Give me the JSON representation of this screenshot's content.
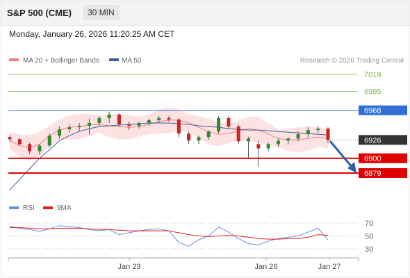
{
  "header": {
    "title": "S&P 500 (CME)",
    "timeframe": "30 MIN"
  },
  "datetime": "Monday, January 26, 2026 11:20:25 AM CET",
  "colors": {
    "resistance": "#7ab648",
    "pivot": "#2f6fd6",
    "support": "#e00000",
    "current_price": "#333333",
    "ma20": "#f08080",
    "bollinger_fill": "#fbd5d5",
    "ma50": "#3a5f9f",
    "candle_up": "#2e8b2e",
    "candle_down": "#cc2222",
    "rsi": "#6a8ee0",
    "rsi_ma": "#e02020",
    "arrow": "#2f5fa8"
  },
  "chart_data": [
    {
      "type": "line",
      "title": "S&P 500 (CME)",
      "timeframe": "30 MIN",
      "legend": [
        {
          "name": "MA 20 + Bollinger Bands",
          "color": "#f08080"
        },
        {
          "name": "MA 50",
          "color": "#3a5f9f"
        }
      ],
      "source": "Research © 2026 Trading Central",
      "y_range": [
        6845,
        7030
      ],
      "x_ticks": [
        "Jan 23",
        "Jan 26",
        "Jan 27"
      ],
      "levels": [
        {
          "label": "7019",
          "value": 7019,
          "kind": "resistance"
        },
        {
          "label": "6995",
          "value": 6995,
          "kind": "resistance"
        },
        {
          "label": "6968",
          "value": 6968,
          "kind": "pivot"
        },
        {
          "label": "6926",
          "value": 6926,
          "kind": "current"
        },
        {
          "label": "6900",
          "value": 6900,
          "kind": "support"
        },
        {
          "label": "6879",
          "value": 6879,
          "kind": "support"
        }
      ],
      "series": [
        {
          "name": "MA 20",
          "values": [
            6925,
            6918,
            6915,
            6920,
            6932,
            6940,
            6944,
            6945,
            6947,
            6948,
            6946,
            6945,
            6944,
            6945,
            6948,
            6952,
            6954,
            6954,
            6950,
            6944,
            6938,
            6934,
            6935,
            6939,
            6942,
            6940,
            6934,
            6928,
            6926,
            6926,
            6928,
            6930,
            6928
          ]
        },
        {
          "name": "MA 50",
          "values": [
            6855,
            6870,
            6885,
            6900,
            6912,
            6925,
            6932,
            6938,
            6942,
            6945,
            6946,
            6947,
            6948,
            6949,
            6950,
            6950,
            6950,
            6949,
            6948,
            6946,
            6945,
            6944,
            6942,
            6941,
            6940,
            6940,
            6939,
            6938,
            6937,
            6936,
            6935,
            6934,
            6933
          ]
        }
      ],
      "candles_ohlc": [
        [
          6930,
          6933,
          6924,
          6927
        ],
        [
          6927,
          6929,
          6918,
          6920
        ],
        [
          6920,
          6922,
          6906,
          6910
        ],
        [
          6910,
          6920,
          6905,
          6918
        ],
        [
          6918,
          6935,
          6915,
          6932
        ],
        [
          6932,
          6945,
          6928,
          6941
        ],
        [
          6941,
          6948,
          6936,
          6944
        ],
        [
          6944,
          6950,
          6938,
          6946
        ],
        [
          6946,
          6956,
          6934,
          6950
        ],
        [
          6950,
          6960,
          6946,
          6957
        ],
        [
          6957,
          6966,
          6950,
          6962
        ],
        [
          6962,
          6964,
          6945,
          6948
        ],
        [
          6948,
          6952,
          6940,
          6946
        ],
        [
          6946,
          6952,
          6942,
          6950
        ],
        [
          6950,
          6956,
          6946,
          6954
        ],
        [
          6954,
          6960,
          6950,
          6957
        ],
        [
          6957,
          6960,
          6952,
          6955
        ],
        [
          6955,
          6957,
          6930,
          6935
        ],
        [
          6935,
          6938,
          6920,
          6925
        ],
        [
          6925,
          6932,
          6920,
          6930
        ],
        [
          6930,
          6940,
          6926,
          6938
        ],
        [
          6938,
          6960,
          6935,
          6957
        ],
        [
          6957,
          6960,
          6942,
          6945
        ],
        [
          6945,
          6948,
          6920,
          6924
        ],
        [
          6924,
          6930,
          6900,
          6928
        ],
        [
          6920,
          6925,
          6888,
          6914
        ],
        [
          6914,
          6922,
          6910,
          6920
        ],
        [
          6920,
          6928,
          6916,
          6925
        ],
        [
          6925,
          6930,
          6920,
          6928
        ],
        [
          6928,
          6938,
          6924,
          6934
        ],
        [
          6934,
          6944,
          6930,
          6940
        ],
        [
          6940,
          6946,
          6936,
          6942
        ],
        [
          6942,
          6944,
          6922,
          6926
        ]
      ]
    },
    {
      "type": "line",
      "title": "RSI",
      "legend": [
        {
          "name": "RSI",
          "color": "#6a8ee0"
        },
        {
          "name": "9MA",
          "color": "#e02020"
        }
      ],
      "y_range": [
        20,
        80
      ],
      "y_ticks": [
        70,
        50,
        30
      ],
      "series": [
        {
          "name": "RSI",
          "values": [
            65,
            62,
            60,
            57,
            61,
            66,
            65,
            63,
            60,
            58,
            60,
            52,
            55,
            58,
            60,
            61,
            58,
            40,
            34,
            44,
            50,
            64,
            56,
            46,
            38,
            36,
            42,
            46,
            48,
            50,
            56,
            62,
            44
          ]
        },
        {
          "name": "9MA",
          "values": [
            63,
            63,
            62,
            61,
            61,
            62,
            62,
            62,
            61,
            60,
            60,
            59,
            58,
            58,
            58,
            58,
            58,
            55,
            52,
            50,
            49,
            50,
            51,
            50,
            48,
            46,
            45,
            45,
            46,
            46,
            48,
            52,
            51
          ]
        }
      ]
    }
  ]
}
